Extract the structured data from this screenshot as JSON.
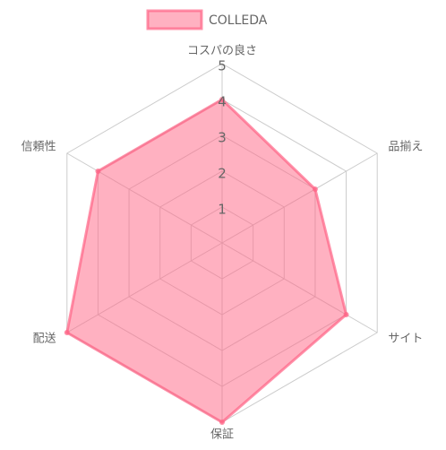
{
  "chart_data": {
    "type": "radar",
    "categories": [
      "コスパの良さ",
      "品揃え",
      "サイト",
      "保証",
      "配送",
      "信頼性"
    ],
    "series": [
      {
        "name": "COLLEDA",
        "color": "#ff6384",
        "values": [
          4,
          3,
          4,
          5,
          5,
          4
        ]
      }
    ],
    "ylim": [
      0,
      5
    ],
    "yticks": [
      1,
      2,
      3,
      4,
      5
    ],
    "grid": true,
    "legend": "top"
  }
}
